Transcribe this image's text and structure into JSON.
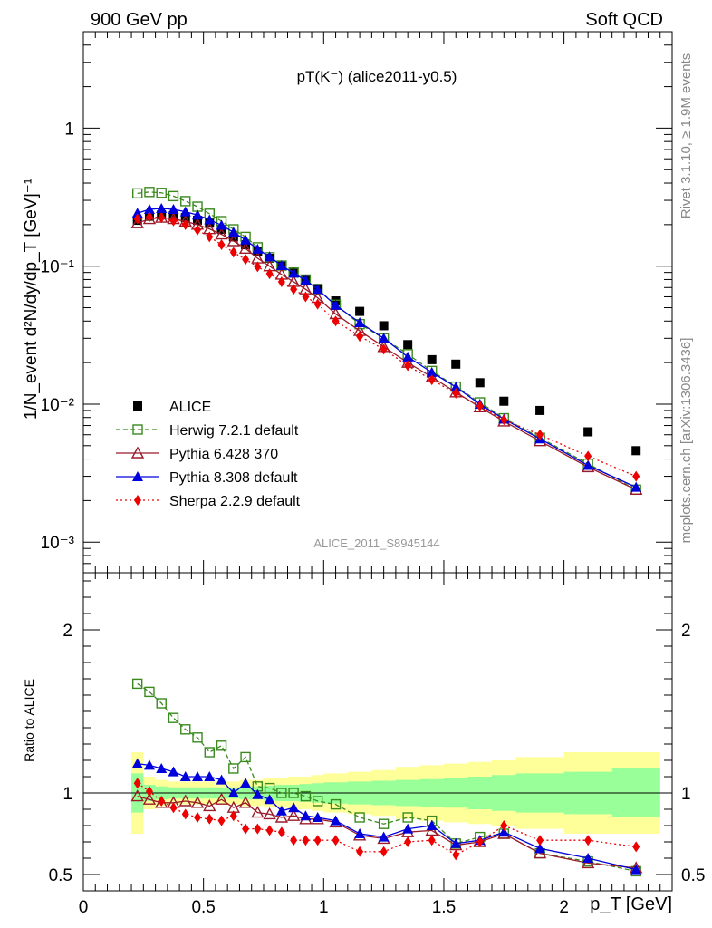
{
  "header": {
    "left": "900 GeV pp",
    "right": "Soft QCD"
  },
  "side_labels": {
    "rivet": "Rivet 3.1.10, ≥ 1.9M events",
    "mcplots": "mcplots.cern.ch [arXiv:1306.3436]"
  },
  "colors": {
    "alice": "#000000",
    "herwig": "#3a8a1e",
    "pythia6": "#9a1b2a",
    "pythia8": "#0000dd",
    "sherpa": "#ee0000",
    "band_inner": "#99ff99",
    "band_outer": "#ffff99"
  },
  "chart_data": {
    "type": "scatter",
    "title": "pT(K⁻) (alice2011-y0.5)",
    "watermark": "ALICE_2011_S8945144",
    "xlabel": "p_T [GeV]",
    "ylabel": "1/N_event d²N/dy/dp_T [GeV]⁻¹",
    "ratio_ylabel": "Ratio to ALICE",
    "xlim": [
      0,
      2.45
    ],
    "ylim": [
      0.0006,
      5
    ],
    "yscale": "log",
    "ratio_ylim": [
      0.4,
      2.35
    ],
    "x_ticks": [
      "0",
      "0.5",
      "1",
      "1.5",
      "2"
    ],
    "y_ticks": [
      "1",
      "10⁻¹",
      "10⁻²",
      "10⁻³"
    ],
    "ratio_ticks": [
      "0.5",
      "1",
      "2"
    ],
    "ratio_ticks_right": [
      "0.5",
      "1",
      "2"
    ],
    "legend_position": "lower-left",
    "x": [
      0.225,
      0.275,
      0.325,
      0.375,
      0.425,
      0.475,
      0.525,
      0.575,
      0.625,
      0.675,
      0.725,
      0.775,
      0.825,
      0.875,
      0.925,
      0.975,
      1.05,
      1.15,
      1.25,
      1.35,
      1.45,
      1.55,
      1.65,
      1.75,
      1.9,
      2.1,
      2.3
    ],
    "series": [
      {
        "name": "ALICE",
        "marker": "filled-square",
        "values": [
          0.215,
          0.23,
          0.235,
          0.232,
          0.225,
          0.215,
          0.205,
          0.185,
          0.163,
          0.143,
          0.128,
          0.114,
          0.101,
          0.089,
          0.079,
          0.069,
          0.056,
          0.047,
          0.037,
          0.027,
          0.021,
          0.0195,
          0.0143,
          0.0105,
          0.009,
          0.0063,
          0.0046
        ],
        "ratio": []
      },
      {
        "name": "Herwig 7.2.1 default",
        "marker": "open-square",
        "style": "dashed",
        "values": [
          0.337,
          0.345,
          0.34,
          0.322,
          0.296,
          0.27,
          0.24,
          0.212,
          0.185,
          0.163,
          0.137,
          0.116,
          0.101,
          0.09,
          0.08,
          0.068,
          0.0525,
          0.038,
          0.03,
          0.023,
          0.0174,
          0.0134,
          0.0103,
          0.0079,
          0.0057,
          0.0037,
          0.0024
        ],
        "ratio": [
          1.67,
          1.62,
          1.55,
          1.46,
          1.39,
          1.34,
          1.25,
          1.29,
          1.15,
          1.22,
          1.04,
          1.03,
          1.0,
          1.0,
          0.98,
          0.95,
          0.93,
          0.85,
          0.81,
          0.85,
          0.83,
          0.69,
          0.73,
          0.75,
          0.63,
          0.58,
          0.52
        ]
      },
      {
        "name": "Pythia 6.428 370",
        "marker": "open-triangle",
        "style": "solid",
        "values": [
          0.205,
          0.22,
          0.225,
          0.22,
          0.211,
          0.2,
          0.186,
          0.17,
          0.152,
          0.134,
          0.114,
          0.1,
          0.087,
          0.077,
          0.068,
          0.059,
          0.045,
          0.034,
          0.026,
          0.02,
          0.0157,
          0.0122,
          0.0095,
          0.0075,
          0.0054,
          0.0035,
          0.0024
        ],
        "ratio": [
          0.98,
          0.96,
          0.94,
          0.94,
          0.95,
          0.94,
          0.92,
          0.96,
          0.91,
          0.94,
          0.88,
          0.87,
          0.85,
          0.86,
          0.84,
          0.84,
          0.82,
          0.74,
          0.72,
          0.76,
          0.77,
          0.68,
          0.7,
          0.75,
          0.63,
          0.57,
          0.54
        ]
      },
      {
        "name": "Pythia 8.308 default",
        "marker": "filled-triangle",
        "style": "solid",
        "values": [
          0.242,
          0.258,
          0.262,
          0.258,
          0.248,
          0.235,
          0.217,
          0.198,
          0.176,
          0.155,
          0.133,
          0.117,
          0.101,
          0.089,
          0.079,
          0.068,
          0.052,
          0.039,
          0.03,
          0.022,
          0.017,
          0.0133,
          0.01,
          0.0078,
          0.0056,
          0.0036,
          0.0025
        ],
        "ratio": [
          1.18,
          1.17,
          1.15,
          1.13,
          1.1,
          1.1,
          1.1,
          1.08,
          1.0,
          1.06,
          0.99,
          0.96,
          0.89,
          0.91,
          0.86,
          0.85,
          0.83,
          0.75,
          0.73,
          0.78,
          0.8,
          0.69,
          0.71,
          0.76,
          0.66,
          0.6,
          0.53
        ]
      },
      {
        "name": "Sherpa 2.2.9 default",
        "marker": "filled-diamond",
        "style": "dotted",
        "values": [
          0.22,
          0.228,
          0.225,
          0.213,
          0.2,
          0.183,
          0.163,
          0.143,
          0.126,
          0.112,
          0.099,
          0.088,
          0.077,
          0.068,
          0.06,
          0.053,
          0.04,
          0.031,
          0.025,
          0.019,
          0.015,
          0.012,
          0.0097,
          0.0077,
          0.006,
          0.0042,
          0.003
        ],
        "ratio": [
          1.06,
          1.01,
          0.95,
          0.91,
          0.87,
          0.85,
          0.84,
          0.83,
          0.86,
          0.78,
          0.78,
          0.77,
          0.76,
          0.71,
          0.71,
          0.71,
          0.71,
          0.64,
          0.64,
          0.7,
          0.71,
          0.62,
          0.7,
          0.8,
          0.71,
          0.71,
          0.67
        ]
      }
    ],
    "band": {
      "x_edges": [
        0.2,
        0.25,
        0.3,
        0.35,
        0.4,
        0.45,
        0.5,
        0.55,
        0.6,
        0.65,
        0.7,
        0.75,
        0.8,
        0.85,
        0.9,
        0.95,
        1.0,
        1.1,
        1.2,
        1.3,
        1.4,
        1.5,
        1.6,
        1.7,
        1.8,
        2.0,
        2.2,
        2.4
      ],
      "stat_syst_outer": [
        0.25,
        0.1,
        0.08,
        0.07,
        0.07,
        0.07,
        0.07,
        0.07,
        0.07,
        0.08,
        0.08,
        0.09,
        0.09,
        0.1,
        0.1,
        0.11,
        0.12,
        0.13,
        0.14,
        0.16,
        0.17,
        0.18,
        0.19,
        0.2,
        0.22,
        0.25,
        0.25
      ],
      "inner": [
        0.12,
        0.05,
        0.04,
        0.035,
        0.035,
        0.035,
        0.035,
        0.035,
        0.035,
        0.04,
        0.04,
        0.045,
        0.05,
        0.05,
        0.055,
        0.06,
        0.065,
        0.07,
        0.075,
        0.08,
        0.085,
        0.09,
        0.1,
        0.11,
        0.12,
        0.13,
        0.15
      ]
    }
  }
}
